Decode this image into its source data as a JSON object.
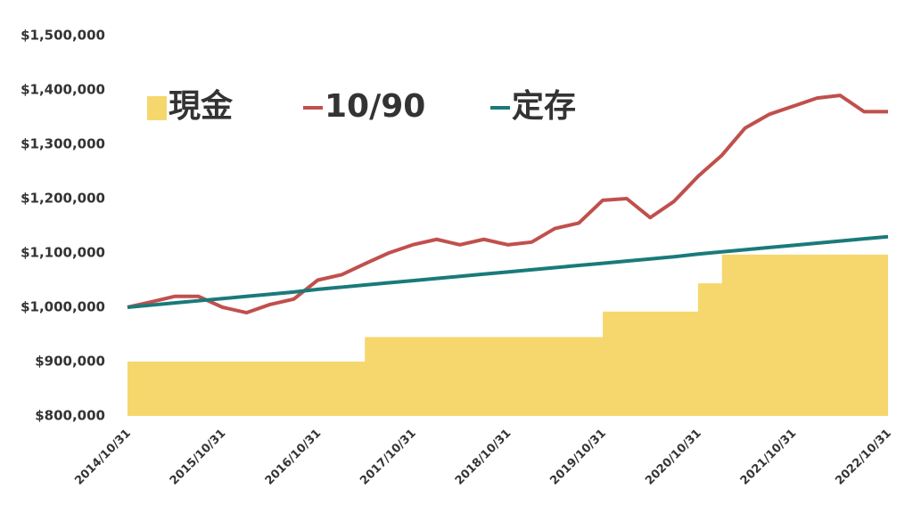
{
  "chart_data": {
    "type": "line",
    "x": [
      "2014/10/31",
      "2015/01/31",
      "2015/04/30",
      "2015/07/31",
      "2015/10/31",
      "2016/01/31",
      "2016/04/30",
      "2016/07/31",
      "2016/10/31",
      "2017/01/31",
      "2017/04/30",
      "2017/07/31",
      "2017/10/31",
      "2018/01/31",
      "2018/04/30",
      "2018/07/31",
      "2018/10/31",
      "2019/01/31",
      "2019/04/30",
      "2019/07/31",
      "2019/10/31",
      "2020/01/31",
      "2020/04/30",
      "2020/07/31",
      "2020/10/31",
      "2021/01/31",
      "2021/04/30",
      "2021/07/31",
      "2021/10/31",
      "2022/01/31",
      "2022/04/30",
      "2022/07/31",
      "2022/10/31"
    ],
    "series": [
      {
        "name": "現金",
        "kind": "step-area",
        "color": "#f5d76e",
        "values": [
          900000,
          900000,
          900000,
          900000,
          900000,
          900000,
          900000,
          900000,
          900000,
          900000,
          945000,
          945000,
          945000,
          945000,
          945000,
          945000,
          945000,
          945000,
          945000,
          945000,
          992000,
          992000,
          992000,
          992000,
          1044000,
          1097000,
          1097000,
          1097000,
          1097000,
          1097000,
          1097000,
          1097000,
          1097000
        ]
      },
      {
        "name": "10/90",
        "kind": "line",
        "color": "#c0504d",
        "values": [
          1000000,
          1010000,
          1020000,
          1020000,
          1000000,
          990000,
          1005000,
          1015000,
          1050000,
          1060000,
          1080000,
          1100000,
          1115000,
          1125000,
          1115000,
          1125000,
          1115000,
          1120000,
          1145000,
          1155000,
          1197000,
          1200000,
          1165000,
          1195000,
          1241000,
          1280000,
          1330000,
          1355000,
          1370000,
          1385000,
          1390000,
          1360000,
          1360000
        ]
      },
      {
        "name": "定存",
        "kind": "line",
        "color": "#1a7a7a",
        "values": [
          1000000,
          1004000,
          1008000,
          1012000,
          1016000,
          1020000,
          1024000,
          1028000,
          1033000,
          1037000,
          1041000,
          1045000,
          1049000,
          1053000,
          1057000,
          1061000,
          1065000,
          1069000,
          1073000,
          1077000,
          1081000,
          1085000,
          1089000,
          1093000,
          1098000,
          1102000,
          1106000,
          1110000,
          1114000,
          1118000,
          1122000,
          1126000,
          1130000
        ]
      }
    ],
    "xlim": [
      "2014/10/31",
      "2022/10/31"
    ],
    "xticks": [
      "2014/10/31",
      "2015/10/31",
      "2016/10/31",
      "2017/10/31",
      "2018/10/31",
      "2019/10/31",
      "2020/10/31",
      "2021/10/31",
      "2022/10/31"
    ],
    "ylim": [
      800000,
      1500000
    ],
    "yticks": [
      {
        "value": 800000,
        "label": "$800,000"
      },
      {
        "value": 900000,
        "label": "$900,000"
      },
      {
        "value": 1000000,
        "label": "$1,000,000"
      },
      {
        "value": 1100000,
        "label": "$1,100,000"
      },
      {
        "value": 1200000,
        "label": "$1,200,000"
      },
      {
        "value": 1300000,
        "label": "$1,300,000"
      },
      {
        "value": 1400000,
        "label": "$1,400,000"
      },
      {
        "value": 1500000,
        "label": "$1,500,000"
      }
    ],
    "grid": false,
    "legend": "top"
  }
}
